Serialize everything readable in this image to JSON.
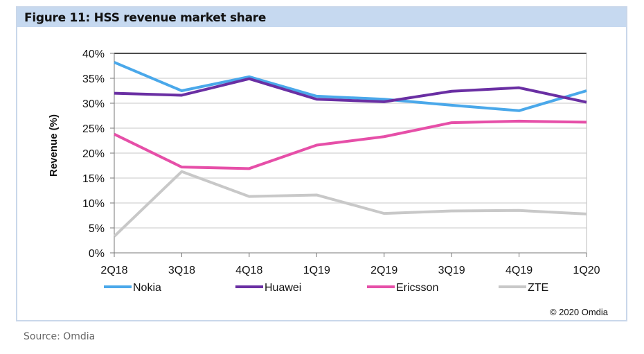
{
  "figure_title": "Figure 11: HSS revenue market share",
  "source": "Source: Omdia",
  "copyright": "© 2020 Omdia",
  "chart_data": {
    "type": "line",
    "title": "Figure 11: HSS revenue market share",
    "xlabel": "",
    "ylabel": "Revenue (%)",
    "ylim": [
      0,
      40
    ],
    "yticks": [
      "0%",
      "5%",
      "10%",
      "15%",
      "20%",
      "25%",
      "30%",
      "35%",
      "40%"
    ],
    "grid": true,
    "legend": "bottom",
    "categories": [
      "2Q18",
      "3Q18",
      "4Q18",
      "1Q19",
      "2Q19",
      "3Q19",
      "4Q19",
      "1Q20"
    ],
    "series": [
      {
        "name": "Nokia",
        "color": "#4aa8ea",
        "values": [
          38.2,
          32.5,
          35.3,
          31.4,
          30.8,
          29.6,
          28.5,
          32.5
        ]
      },
      {
        "name": "Huawei",
        "color": "#6a2fa3",
        "values": [
          32.0,
          31.6,
          34.9,
          30.8,
          30.3,
          32.4,
          33.1,
          30.2
        ]
      },
      {
        "name": "Ericsson",
        "color": "#e64fa8",
        "values": [
          23.8,
          17.2,
          16.9,
          21.6,
          23.3,
          26.1,
          26.4,
          26.2
        ]
      },
      {
        "name": "ZTE",
        "color": "#c8c8c8",
        "values": [
          3.3,
          16.3,
          11.3,
          11.6,
          7.9,
          8.4,
          8.5,
          7.8
        ]
      }
    ]
  }
}
